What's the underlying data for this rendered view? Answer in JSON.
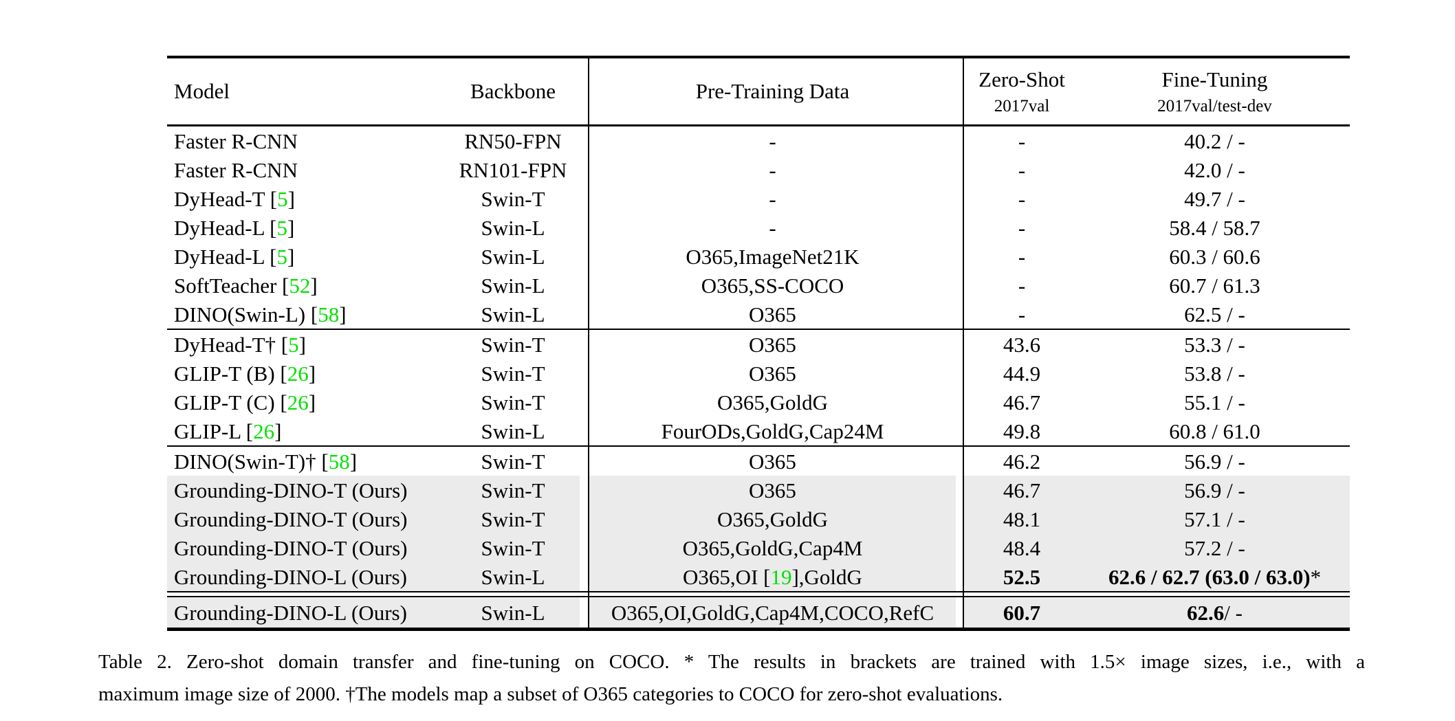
{
  "colors": {
    "row_shade": "#EBEBEB",
    "citation_green": "#00E100",
    "rule_black": "#000000"
  },
  "table": {
    "header": {
      "model": "Model",
      "backbone": "Backbone",
      "pretrain": "Pre-Training Data",
      "zeroshot_line1": "Zero-Shot",
      "zeroshot_line2": "2017val",
      "finetune_line1": "Fine-Tuning",
      "finetune_line2": "2017val/test-dev"
    },
    "sections": [
      {
        "rule_after": "single",
        "rows": [
          {
            "model": "Faster R-CNN",
            "cite": "",
            "backbone": "RN50-FPN",
            "pretrain": "-",
            "zeroshot": "-",
            "finetune": "40.2 / -",
            "shaded": false,
            "bold": false
          },
          {
            "model": "Faster R-CNN",
            "cite": "",
            "backbone": "RN101-FPN",
            "pretrain": "-",
            "zeroshot": "-",
            "finetune": "42.0 / -",
            "shaded": false,
            "bold": false
          },
          {
            "model": "DyHead-T",
            "cite": "5",
            "backbone": "Swin-T",
            "pretrain": "-",
            "zeroshot": "-",
            "finetune": "49.7 / -",
            "shaded": false,
            "bold": false
          },
          {
            "model": "DyHead-L",
            "cite": "5",
            "backbone": "Swin-L",
            "pretrain": "-",
            "zeroshot": "-",
            "finetune": "58.4 / 58.7",
            "shaded": false,
            "bold": false
          },
          {
            "model": "DyHead-L",
            "cite": "5",
            "backbone": "Swin-L",
            "pretrain": "O365,ImageNet21K",
            "zeroshot": "-",
            "finetune": "60.3 / 60.6",
            "shaded": false,
            "bold": false
          },
          {
            "model": "SoftTeacher",
            "cite": "52",
            "backbone": "Swin-L",
            "pretrain": "O365,SS-COCO",
            "zeroshot": "-",
            "finetune": "60.7 / 61.3",
            "shaded": false,
            "bold": false
          },
          {
            "model": "DINO(Swin-L)",
            "cite": "58",
            "backbone": "Swin-L",
            "pretrain": "O365",
            "zeroshot": "-",
            "finetune": "62.5 / -",
            "shaded": false,
            "bold": false
          }
        ]
      },
      {
        "rule_after": "single",
        "rows": [
          {
            "model": "DyHead-T†",
            "cite": "5",
            "backbone": "Swin-T",
            "pretrain": "O365",
            "zeroshot": "43.6",
            "finetune": "53.3 / -",
            "shaded": false,
            "bold": false
          },
          {
            "model": "GLIP-T (B)",
            "cite": "26",
            "backbone": "Swin-T",
            "pretrain": "O365",
            "zeroshot": "44.9",
            "finetune": "53.8 / -",
            "shaded": false,
            "bold": false
          },
          {
            "model": "GLIP-T (C)",
            "cite": "26",
            "backbone": "Swin-T",
            "pretrain": "O365,GoldG",
            "zeroshot": "46.7",
            "finetune": "55.1 / -",
            "shaded": false,
            "bold": false
          },
          {
            "model": "GLIP-L",
            "cite": "26",
            "backbone": "Swin-L",
            "pretrain": "FourODs,GoldG,Cap24M",
            "zeroshot": "49.8",
            "finetune": "60.8 / 61.0",
            "shaded": false,
            "bold": false
          }
        ]
      },
      {
        "rule_after": "double",
        "rows": [
          {
            "model": "DINO(Swin-T)†",
            "cite": "58",
            "backbone": "Swin-T",
            "pretrain": "O365",
            "zeroshot": "46.2",
            "finetune": "56.9 / -",
            "shaded": false,
            "bold": false
          },
          {
            "model": "Grounding-DINO-T (Ours)",
            "cite": "",
            "backbone": "Swin-T",
            "pretrain": "O365",
            "zeroshot": "46.7",
            "finetune": "56.9 / -",
            "shaded": true,
            "bold": false
          },
          {
            "model": "Grounding-DINO-T (Ours)",
            "cite": "",
            "backbone": "Swin-T",
            "pretrain": "O365,GoldG",
            "zeroshot": "48.1",
            "finetune": "57.1 / -",
            "shaded": true,
            "bold": false
          },
          {
            "model": "Grounding-DINO-T (Ours)",
            "cite": "",
            "backbone": "Swin-T",
            "pretrain": "O365,GoldG,Cap4M",
            "zeroshot": "48.4",
            "finetune": "57.2 / -",
            "shaded": true,
            "bold": false
          },
          {
            "model": "Grounding-DINO-L (Ours)",
            "cite": "",
            "backbone": "Swin-L",
            "pretrain_before": "O365,OI [",
            "pretrain_cite": "19",
            "pretrain_after": "],GoldG",
            "zeroshot": "52.5",
            "finetune": "62.6 / 62.7 (63.0 / 63.0)",
            "finetune_suffix": "*",
            "shaded": true,
            "bold": true
          }
        ]
      },
      {
        "rule_after": "none",
        "rows": [
          {
            "model": "Grounding-DINO-L (Ours)",
            "cite": "",
            "backbone": "Swin-L",
            "pretrain": "O365,OI,GoldG,Cap4M,COCO,RefC",
            "zeroshot": "60.7",
            "finetune": "62.6",
            "finetune_suffix": " / -",
            "shaded": true,
            "bold": true,
            "last": true
          }
        ]
      }
    ]
  },
  "caption": {
    "line1": "Table 2.  Zero-shot domain transfer and fine-tuning on COCO. * The results in brackets are trained with 1.5× image sizes, i.e., with a",
    "line2": "maximum image size of 2000. †The models map a subset of O365 categories to COCO for zero-shot evaluations."
  }
}
